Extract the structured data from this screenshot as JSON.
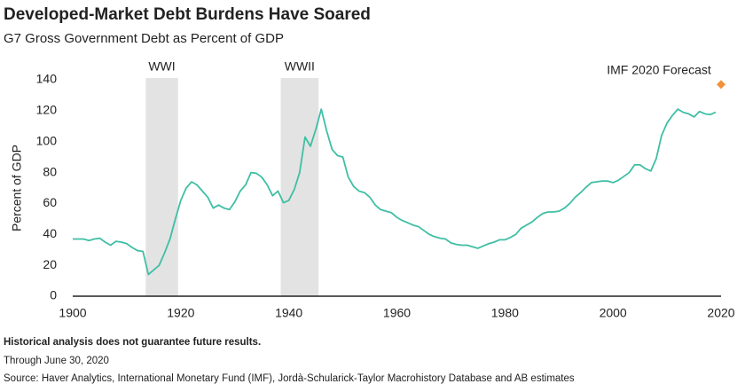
{
  "chart_data": {
    "type": "line",
    "title": "Developed-Market Debt Burdens Have Soared",
    "subtitle": "G7 Gross Government Debt as Percent of GDP",
    "y_label": "Percent of GDP",
    "x": [
      1900,
      1901,
      1902,
      1903,
      1904,
      1905,
      1906,
      1907,
      1908,
      1909,
      1910,
      1911,
      1912,
      1913,
      1914,
      1915,
      1916,
      1917,
      1918,
      1919,
      1920,
      1921,
      1922,
      1923,
      1924,
      1925,
      1926,
      1927,
      1928,
      1929,
      1930,
      1931,
      1932,
      1933,
      1934,
      1935,
      1936,
      1937,
      1938,
      1939,
      1940,
      1941,
      1942,
      1943,
      1944,
      1945,
      1946,
      1947,
      1948,
      1949,
      1950,
      1951,
      1952,
      1953,
      1954,
      1955,
      1956,
      1957,
      1958,
      1959,
      1960,
      1961,
      1962,
      1963,
      1964,
      1965,
      1966,
      1967,
      1968,
      1969,
      1970,
      1971,
      1972,
      1973,
      1974,
      1975,
      1976,
      1977,
      1978,
      1979,
      1980,
      1981,
      1982,
      1983,
      1984,
      1985,
      1986,
      1987,
      1988,
      1989,
      1990,
      1991,
      1992,
      1993,
      1994,
      1995,
      1996,
      1997,
      1998,
      1999,
      2000,
      2001,
      2002,
      2003,
      2004,
      2005,
      2006,
      2007,
      2008,
      2009,
      2010,
      2011,
      2012,
      2013,
      2014,
      2015,
      2016,
      2017,
      2018,
      2019
    ],
    "values": [
      37,
      37,
      37,
      36,
      37,
      37.5,
      35,
      33,
      35.5,
      35,
      34,
      31.5,
      29.5,
      29,
      14,
      17,
      20,
      28,
      37,
      50,
      62,
      70,
      74,
      72,
      68,
      64,
      57,
      59,
      57,
      56,
      61,
      68,
      72,
      80,
      79.5,
      77,
      72,
      65,
      68,
      60.5,
      62,
      69,
      80,
      103,
      97,
      108,
      121,
      107,
      95,
      91,
      90,
      77,
      71,
      68,
      67,
      64,
      59,
      56,
      55,
      54,
      51,
      49,
      47.5,
      46,
      45,
      42.5,
      40,
      38.5,
      37.5,
      37,
      34.5,
      33.5,
      33,
      33,
      32,
      31,
      32.5,
      34,
      35,
      36.5,
      36.5,
      38,
      40,
      44,
      46,
      48,
      51,
      53.5,
      54.5,
      54.5,
      55,
      57,
      60,
      64,
      67,
      70.5,
      73.5,
      74,
      74.5,
      74.5,
      73.5,
      75,
      77.5,
      80,
      85,
      85,
      82.5,
      81,
      89,
      104,
      112,
      117,
      121,
      119,
      118,
      116,
      119.5,
      118,
      117.5,
      119
    ],
    "color": "#3fbfa5",
    "xlim": [
      1900,
      2020
    ],
    "xticks": [
      1900,
      1920,
      1940,
      1960,
      1980,
      2000,
      2020
    ],
    "ylim": [
      0,
      140
    ],
    "yticks": [
      0,
      20,
      40,
      60,
      80,
      100,
      120,
      140
    ],
    "bands": [
      {
        "label": "WWI",
        "start": 1913.5,
        "end": 1919.5
      },
      {
        "label": "WWII",
        "start": 1938.5,
        "end": 1945.5
      }
    ],
    "band_color": "#e3e3e3",
    "forecast": {
      "name": "IMF 2020 Forecast",
      "x": 2020,
      "value": 137,
      "color": "#f2913a"
    },
    "footnotes": [
      "Historical analysis does not guarantee future results.",
      "Through June 30, 2020",
      "Source: Haver Analytics, International Monetary Fund (IMF), Jordà-Schularick-Taylor Macrohistory Database and AB estimates"
    ]
  }
}
